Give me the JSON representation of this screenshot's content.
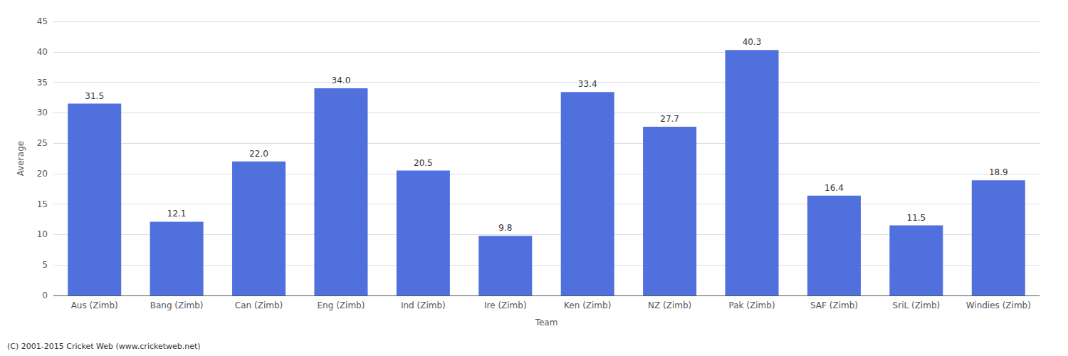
{
  "chart_data": {
    "type": "bar",
    "categories": [
      "Aus (Zimb)",
      "Bang (Zimb)",
      "Can (Zimb)",
      "Eng (Zimb)",
      "Ind (Zimb)",
      "Ire (Zimb)",
      "Ken (Zimb)",
      "NZ (Zimb)",
      "Pak (Zimb)",
      "SAF (Zimb)",
      "SriL (Zimb)",
      "Windies (Zimb)"
    ],
    "values": [
      31.5,
      12.1,
      22.0,
      34.0,
      20.5,
      9.8,
      33.4,
      27.7,
      40.3,
      16.4,
      11.5,
      18.9
    ],
    "value_labels": [
      "31.5",
      "12.1",
      "22.0",
      "34.0",
      "20.5",
      "9.8",
      "33.4",
      "27.7",
      "40.3",
      "16.4",
      "11.5",
      "18.9"
    ],
    "data_labels": true,
    "xlabel": "Team",
    "ylabel": "Average",
    "ylim": [
      0,
      45
    ],
    "yticks": [
      0,
      5,
      10,
      15,
      20,
      25,
      30,
      35,
      40,
      45
    ],
    "grid": true,
    "annotations": [
      "(C) 2001-2015 Cricket Web (www.cricketweb.net)"
    ]
  }
}
